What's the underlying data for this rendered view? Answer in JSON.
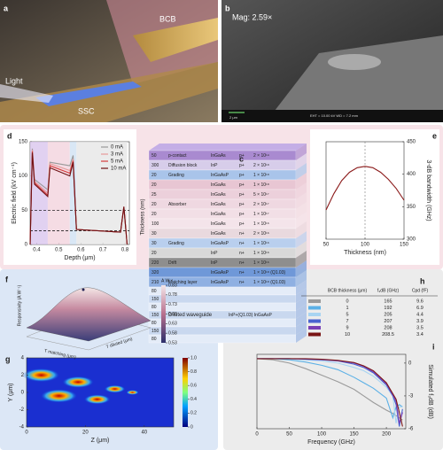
{
  "panel_a": {
    "label": "a",
    "annotations": [
      "BCB",
      "Light",
      "SSC"
    ]
  },
  "panel_b": {
    "label": "b",
    "magnification": "Mag: 2.59×",
    "scale_bar": "2 μm",
    "info": "EHT = 10.00 kV   WD = 7.2 mm"
  },
  "panel_c": {
    "label": "c",
    "axis_label": "Thickness (nm)",
    "layers": [
      {
        "t": "50",
        "name": "p-contact",
        "mat": "InGaAs",
        "dop": "p+",
        "conc": "2 × 10¹⁹",
        "color": "#a98ad0"
      },
      {
        "t": "300",
        "name": "Diffusion block",
        "mat": "InP",
        "dop": "p+",
        "conc": "2 × 10¹⁸",
        "color": "#d7cdea"
      },
      {
        "t": "20",
        "name": "Grading",
        "mat": "InGaAsP",
        "dop": "p+",
        "conc": "1 × 10¹⁸",
        "color": "#a9c4ea"
      },
      {
        "t": "20",
        "mat": "InGaAs",
        "dop": "p+",
        "conc": "1 × 10¹⁸",
        "color": "#e8c6d3"
      },
      {
        "t": "25",
        "mat": "InGaAs",
        "dop": "p+",
        "conc": "5 × 10¹⁷",
        "color": "#ecd0db"
      },
      {
        "t": "20",
        "name": "Absorber",
        "mat": "InGaAs",
        "dop": "p+",
        "conc": "2 × 10¹⁷",
        "color": "#efd8e1"
      },
      {
        "t": "20",
        "mat": "InGaAs",
        "dop": "p+",
        "conc": "1 × 10¹⁷",
        "color": "#f2dfe6"
      },
      {
        "t": "100",
        "mat": "InGaAs",
        "dop": "p+",
        "conc": "1 × 10¹⁶",
        "color": "#f4e4ea"
      },
      {
        "t": "30",
        "mat": "InGaAs",
        "dop": "n+",
        "conc": "2 × 10¹⁶",
        "color": "#e9d9de"
      },
      {
        "t": "30",
        "name": "Grading",
        "mat": "InGaAsP",
        "dop": "n+",
        "conc": "1 × 10¹⁶",
        "color": "#b9cfee"
      },
      {
        "t": "20",
        "mat": "InP",
        "dop": "n+",
        "conc": "1 × 10¹⁶",
        "color": "#d8d8d8"
      },
      {
        "t": "220",
        "name": "Drift",
        "mat": "InP",
        "dop": "n+",
        "conc": "1 × 10¹⁶",
        "color": "#8e8e8e"
      },
      {
        "t": "320",
        "mat": "InGaAsP",
        "dop": "n+",
        "conc": "1 × 10¹⁸ (Q1.03)",
        "color": "#6f98d8"
      },
      {
        "t": "210",
        "name": "Matching layer",
        "mat": "InGaAsP",
        "dop": "n+",
        "conc": "1 × 10¹⁸ (Q1.03)",
        "color": "#8fb0e2"
      }
    ],
    "waveguide": {
      "name": "Diluted waveguide",
      "material": "InP+(Q1.03) InGaAsP",
      "thicknesses": [
        "80",
        "150",
        "80",
        "150",
        "80",
        "150",
        "80"
      ]
    }
  },
  "panel_h": {
    "label": "h",
    "headers": [
      "BCB thickness (μm)",
      "f₃dB (GHz)",
      "Cpd (fF)"
    ],
    "rows": [
      [
        "0",
        "165",
        "9.6"
      ],
      [
        "1",
        "192",
        "6.9"
      ],
      [
        "5",
        "205",
        "4.4"
      ],
      [
        "7",
        "207",
        "3.9"
      ],
      [
        "9",
        "208",
        "3.5"
      ],
      [
        "10",
        "208.5",
        "3.4"
      ]
    ]
  },
  "chart_data": [
    {
      "type": "line",
      "label": "d",
      "xlabel": "Depth (μm)",
      "ylabel": "Electric field (kV cm⁻¹)",
      "xlim": [
        0.37,
        0.82
      ],
      "xticks": [
        0.4,
        0.5,
        0.6,
        0.7,
        0.8
      ],
      "ylim": [
        0,
        150
      ],
      "yticks": [
        0,
        50,
        100,
        150
      ],
      "x": [
        0.37,
        0.38,
        0.39,
        0.45,
        0.46,
        0.55,
        0.565,
        0.58,
        0.78,
        0.795,
        0.81
      ],
      "reference_lines": [
        50,
        20
      ],
      "legend": "upper right",
      "series": [
        {
          "name": "0 mA",
          "color": "#9a9a9a",
          "values": [
            0,
            140,
            95,
            80,
            120,
            115,
            130,
            22,
            18,
            55,
            0
          ]
        },
        {
          "name": "3 mA",
          "color": "#e59a9a",
          "values": [
            0,
            138,
            92,
            75,
            118,
            108,
            125,
            22,
            18,
            55,
            0
          ]
        },
        {
          "name": "5 mA",
          "color": "#d43c3c",
          "values": [
            0,
            136,
            90,
            72,
            115,
            104,
            122,
            22,
            18,
            55,
            0
          ]
        },
        {
          "name": "10 mA",
          "color": "#6e0f12",
          "values": [
            0,
            134,
            88,
            70,
            112,
            100,
            120,
            22,
            18,
            55,
            0
          ]
        }
      ]
    },
    {
      "type": "line",
      "label": "e",
      "xlabel": "Thickness (nm)",
      "ylabel": "3-dB bandwidth (GHz)",
      "y_axis_side": "right",
      "xlim": [
        50,
        150
      ],
      "xticks": [
        50,
        100,
        150
      ],
      "ylim": [
        300,
        450
      ],
      "yticks": [
        300,
        350,
        400,
        450
      ],
      "x": [
        50,
        60,
        70,
        80,
        90,
        100,
        110,
        120,
        130,
        140,
        150
      ],
      "reference_x": 100,
      "series": [
        {
          "color": "#8b1a1a",
          "values": [
            345,
            370,
            390,
            403,
            410,
            412,
            410,
            403,
            392,
            378,
            360
          ]
        }
      ]
    },
    {
      "type": "line",
      "label": "i",
      "xlabel": "Frequency (GHz)",
      "ylabel": "Simulated f₃dB (dB)",
      "y_axis_side": "right",
      "xlim": [
        0,
        230
      ],
      "xticks": [
        0,
        50,
        100,
        150,
        200
      ],
      "ylim": [
        -6,
        0.8
      ],
      "yticks": [
        0,
        -3,
        -6
      ],
      "x": [
        0,
        25,
        50,
        75,
        100,
        125,
        150,
        165,
        180,
        200,
        210,
        215,
        220,
        225
      ],
      "series": [
        {
          "color": "#9a9a9a",
          "values": [
            0.4,
            0.3,
            0,
            -0.5,
            -1.1,
            -1.7,
            -2.4,
            -3.0,
            -3.6,
            -4.3,
            -4.6,
            -4.8,
            -5,
            -5.2
          ]
        },
        {
          "color": "#5bb0e6",
          "values": [
            0.4,
            0.4,
            0.3,
            0.1,
            -0.2,
            -0.6,
            -1.3,
            -1.8,
            -2.3,
            -3.2,
            -5,
            -4,
            -3.8,
            -4
          ]
        },
        {
          "color": "#a8d4f2",
          "values": [
            0.4,
            0.4,
            0.4,
            0.3,
            0.2,
            0,
            -0.4,
            -0.7,
            -1.2,
            -2.2,
            -3.0,
            -5.5,
            -4,
            -4
          ]
        },
        {
          "color": "#4a63d0",
          "values": [
            0.4,
            0.4,
            0.4,
            0.35,
            0.3,
            0.2,
            -0.1,
            -0.4,
            -0.9,
            -2.0,
            -3.0,
            -3.8,
            -5.8,
            -4.2
          ]
        },
        {
          "color": "#7a3fb5",
          "values": [
            0.4,
            0.4,
            0.4,
            0.38,
            0.32,
            0.22,
            0,
            -0.3,
            -0.8,
            -1.9,
            -2.9,
            -3.5,
            -5.5,
            -4.5
          ]
        },
        {
          "color": "#7a1515",
          "values": [
            0.4,
            0.4,
            0.4,
            0.4,
            0.35,
            0.25,
            0.05,
            -0.25,
            -0.7,
            -1.8,
            -2.8,
            -3.3,
            -4.5,
            -5.8
          ]
        }
      ]
    },
    {
      "type": "heatmap",
      "label": "g",
      "xlabel": "Z (μm)",
      "ylabel": "Y (μm)",
      "xlim": [
        0,
        50
      ],
      "xticks": [
        0,
        20,
        40
      ],
      "ylim": [
        -4,
        4
      ],
      "yticks": [
        -4,
        -2,
        0,
        2,
        4
      ],
      "clim": [
        0,
        1
      ],
      "cticks": [
        0,
        0.2,
        0.4,
        0.6,
        0.8,
        {
          "value": 1,
          "label": "1.0"
        }
      ]
    },
    {
      "type": "surface",
      "label": "f",
      "unit": "A W⁻¹",
      "zlabel": "Responsivity (A W⁻¹)",
      "xlabel": "T matching (μm)",
      "ylabel": "T diluted (μm)",
      "clim": [
        0.53,
        0.83
      ],
      "cticks": [
        0.53,
        0.58,
        0.63,
        0.68,
        0.73,
        0.78,
        0.83
      ]
    }
  ]
}
